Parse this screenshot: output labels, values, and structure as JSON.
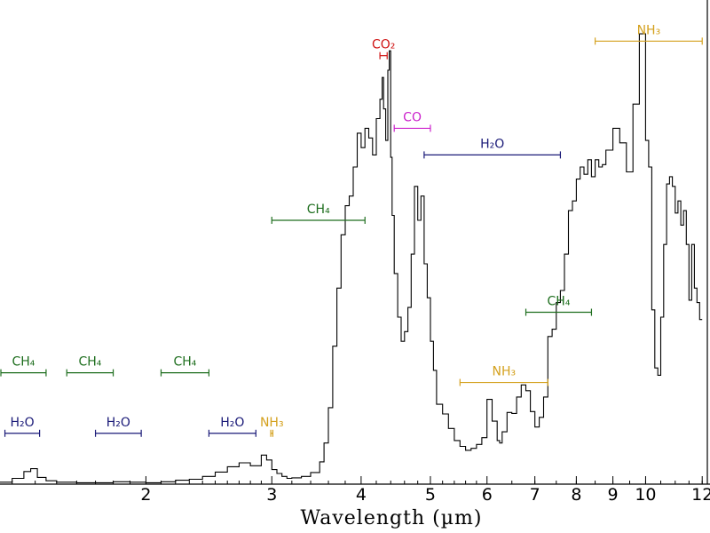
{
  "chart_data": {
    "type": "line",
    "x_scale": "log",
    "xlim": [
      1.25,
      12.2
    ],
    "xlabel": "Wavelength (µm)",
    "ylabel": "",
    "title": "",
    "grid": false,
    "x_ticks": [
      {
        "value": 2,
        "label": "2"
      },
      {
        "value": 3,
        "label": "3"
      },
      {
        "value": 4,
        "label": "4"
      },
      {
        "value": 5,
        "label": "5"
      },
      {
        "value": 6,
        "label": "6"
      },
      {
        "value": 7,
        "label": "7"
      },
      {
        "value": 8,
        "label": "8"
      },
      {
        "value": 9,
        "label": "9"
      },
      {
        "value": 10,
        "label": "10"
      },
      {
        "value": 12,
        "label": "12"
      }
    ],
    "ylim": [
      0,
      100
    ],
    "series": [
      {
        "color": "#000000",
        "x": [
          1.25,
          1.3,
          1.35,
          1.38,
          1.41,
          1.45,
          1.5,
          1.6,
          1.7,
          1.8,
          1.9,
          2.0,
          2.1,
          2.2,
          2.3,
          2.4,
          2.5,
          2.6,
          2.7,
          2.8,
          2.9,
          2.95,
          3.0,
          3.05,
          3.1,
          3.15,
          3.2,
          3.3,
          3.4,
          3.5,
          3.55,
          3.6,
          3.65,
          3.7,
          3.75,
          3.8,
          3.85,
          3.9,
          3.95,
          4.0,
          4.05,
          4.1,
          4.15,
          4.2,
          4.25,
          4.28,
          4.3,
          4.33,
          4.36,
          4.38,
          4.4,
          4.42,
          4.45,
          4.5,
          4.55,
          4.6,
          4.65,
          4.7,
          4.75,
          4.8,
          4.85,
          4.9,
          4.95,
          5.0,
          5.05,
          5.1,
          5.2,
          5.3,
          5.4,
          5.5,
          5.6,
          5.7,
          5.8,
          5.9,
          6.0,
          6.1,
          6.2,
          6.25,
          6.3,
          6.4,
          6.5,
          6.6,
          6.7,
          6.8,
          6.9,
          7.0,
          7.1,
          7.2,
          7.3,
          7.4,
          7.5,
          7.6,
          7.7,
          7.8,
          7.9,
          8.0,
          8.1,
          8.2,
          8.3,
          8.4,
          8.5,
          8.6,
          8.7,
          8.8,
          9.0,
          9.2,
          9.4,
          9.6,
          9.8,
          10.0,
          10.1,
          10.2,
          10.3,
          10.4,
          10.5,
          10.6,
          10.7,
          10.8,
          10.9,
          11.0,
          11.1,
          11.2,
          11.3,
          11.4,
          11.5,
          11.6,
          11.7,
          11.8,
          11.9,
          12.0
        ],
        "y": [
          0.3,
          0.4,
          1.2,
          2.6,
          3.2,
          1.4,
          0.7,
          0.4,
          0.3,
          0.3,
          0.5,
          0.4,
          0.3,
          0.5,
          0.8,
          1.0,
          1.6,
          2.5,
          3.6,
          4.4,
          3.8,
          6.0,
          5.0,
          3.0,
          2.2,
          1.6,
          1.2,
          1.3,
          1.6,
          2.4,
          4.6,
          8.5,
          15.8,
          28.5,
          40.5,
          51.5,
          57.5,
          59.5,
          65.5,
          72.5,
          69.5,
          73.5,
          71.5,
          68.0,
          75.5,
          79.5,
          84.0,
          77.5,
          71.0,
          85.5,
          89.5,
          67.5,
          55.5,
          43.5,
          34.5,
          29.5,
          31.5,
          36.5,
          47.5,
          61.5,
          54.5,
          59.5,
          45.5,
          38.5,
          29.5,
          23.5,
          16.5,
          14.5,
          11.5,
          9.0,
          7.8,
          7.0,
          7.4,
          8.2,
          9.6,
          17.5,
          13.0,
          9.0,
          8.5,
          10.8,
          14.8,
          14.6,
          18.0,
          20.5,
          19.3,
          15.0,
          11.8,
          13.8,
          18.0,
          30.5,
          32.0,
          37.5,
          40.0,
          47.5,
          56.5,
          58.5,
          63.0,
          65.5,
          64.0,
          67.0,
          63.5,
          67.0,
          65.5,
          66.0,
          69.0,
          73.5,
          70.5,
          64.5,
          78.5,
          93.0,
          71.0,
          65.5,
          36.0,
          24.0,
          22.5,
          34.5,
          49.5,
          62.0,
          63.5,
          61.5,
          56.0,
          58.5,
          53.5,
          56.5,
          49.5,
          38.0,
          49.5,
          40.5,
          37.5,
          34.0
        ]
      }
    ],
    "annotations": [
      {
        "label": "CH₄",
        "x_start": 1.25,
        "x_end": 1.45,
        "level": 77.0,
        "color": "#1e6e1e"
      },
      {
        "label": "CH₄",
        "x_start": 1.55,
        "x_end": 1.8,
        "level": 77.0,
        "color": "#1e6e1e"
      },
      {
        "label": "CH₄",
        "x_start": 2.1,
        "x_end": 2.45,
        "level": 77.0,
        "color": "#1e6e1e"
      },
      {
        "label": "H₂O",
        "x_start": 1.27,
        "x_end": 1.42,
        "level": 89.5,
        "color": "#1a1a78"
      },
      {
        "label": "H₂O",
        "x_start": 1.7,
        "x_end": 1.97,
        "level": 89.5,
        "color": "#1a1a78"
      },
      {
        "label": "H₂O",
        "x_start": 2.45,
        "x_end": 2.85,
        "level": 89.5,
        "color": "#1a1a78"
      },
      {
        "label": "NH₃",
        "x_start": 2.99,
        "x_end": 3.01,
        "level": 89.5,
        "color": "#d4a11e"
      },
      {
        "label": "CH₄",
        "x_start": 3.0,
        "x_end": 4.05,
        "level": 45.5,
        "color": "#1e6e1e"
      },
      {
        "label": "CO₂",
        "x_start": 4.25,
        "x_end": 4.35,
        "level": 11.5,
        "color": "#d01414"
      },
      {
        "label": "CO",
        "x_start": 4.45,
        "x_end": 5.0,
        "level": 26.5,
        "color": "#cc22cc"
      },
      {
        "label": "H₂O",
        "x_start": 4.9,
        "x_end": 7.6,
        "level": 32.0,
        "color": "#1a1a78"
      },
      {
        "label": "CH₄",
        "x_start": 6.8,
        "x_end": 8.4,
        "level": 64.5,
        "color": "#1e6e1e"
      },
      {
        "label": "NH₃",
        "x_start": 5.5,
        "x_end": 7.3,
        "level": 79.0,
        "color": "#d4a11e"
      },
      {
        "label": "NH₃",
        "x_start": 8.5,
        "x_end": 12.0,
        "level": 8.5,
        "color": "#d4a11e"
      }
    ]
  }
}
